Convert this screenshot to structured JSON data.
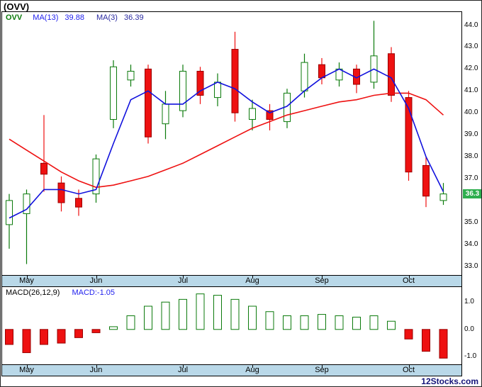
{
  "header": {
    "title": "(OVV)"
  },
  "legend": {
    "symbol": "OVV",
    "ma13_label": "MA(13)",
    "ma13_value": "39.88",
    "ma3_label": "MA(3)",
    "ma3_value": "36.39"
  },
  "macd_legend": {
    "label": "MACD(26,12,9)",
    "value_label": "MACD:-1.05"
  },
  "footer": {
    "brand": "12Stocks.com"
  },
  "colors": {
    "up": "#0b7a0b",
    "down": "#ee1111",
    "down_stroke": "#990000",
    "ma3": "#1111dd",
    "ma13": "#ee1111",
    "band": "#b9d8e8",
    "price_flag_bg": "#2eae4e",
    "price_flag_text": "#ffffff"
  },
  "chart_data": [
    {
      "type": "candlestick",
      "title": "OVV price with MA(13) and MA(3)",
      "y_axis": {
        "min": 32.6,
        "max": 44.6,
        "ticks": [
          44.0,
          43.0,
          42.0,
          41.0,
          40.0,
          39.0,
          38.0,
          37.0,
          35.0,
          34.0,
          33.0
        ]
      },
      "current_price": "36.3",
      "x_axis": {
        "months": [
          {
            "label": "May",
            "index": 1
          },
          {
            "label": "Jun",
            "index": 5
          },
          {
            "label": "Jul",
            "index": 10
          },
          {
            "label": "Aug",
            "index": 14
          },
          {
            "label": "Sep",
            "index": 18
          },
          {
            "label": "Oct",
            "index": 23
          }
        ]
      },
      "columns": [
        "open",
        "high",
        "low",
        "close"
      ],
      "candles": [
        [
          34.9,
          36.3,
          33.8,
          36.0
        ],
        [
          35.4,
          36.5,
          33.1,
          36.3
        ],
        [
          37.7,
          39.9,
          36.4,
          37.2
        ],
        [
          36.8,
          37.1,
          35.5,
          35.9
        ],
        [
          36.1,
          36.5,
          35.3,
          35.7
        ],
        [
          36.3,
          38.1,
          35.9,
          37.9
        ],
        [
          39.7,
          42.4,
          39.3,
          42.1
        ],
        [
          41.5,
          42.2,
          41.2,
          41.9
        ],
        [
          42.0,
          42.2,
          38.6,
          38.9
        ],
        [
          39.5,
          41.0,
          38.8,
          40.4
        ],
        [
          40.1,
          42.2,
          39.8,
          41.9
        ],
        [
          41.9,
          42.1,
          40.4,
          40.8
        ],
        [
          40.7,
          41.8,
          40.3,
          41.4
        ],
        [
          42.9,
          43.7,
          39.6,
          40.0
        ],
        [
          39.7,
          40.6,
          39.2,
          40.2
        ],
        [
          40.1,
          40.4,
          39.2,
          39.7
        ],
        [
          39.6,
          41.1,
          39.3,
          40.9
        ],
        [
          41.0,
          42.7,
          40.7,
          42.3
        ],
        [
          42.2,
          42.5,
          41.3,
          41.6
        ],
        [
          41.5,
          42.3,
          41.2,
          42.0
        ],
        [
          42.0,
          42.2,
          40.9,
          41.3
        ],
        [
          41.4,
          44.2,
          41.1,
          42.6
        ],
        [
          42.7,
          43.0,
          40.5,
          40.8
        ],
        [
          40.7,
          41.0,
          36.9,
          37.3
        ],
        [
          37.6,
          38.0,
          35.7,
          36.2
        ],
        [
          36.0,
          36.8,
          35.8,
          36.3
        ]
      ],
      "series": [
        {
          "name": "MA(3)",
          "color_key": "ma3",
          "values": [
            35.2,
            35.6,
            36.5,
            36.5,
            36.3,
            36.5,
            38.6,
            40.6,
            41.0,
            40.4,
            40.4,
            41.0,
            41.4,
            41.1,
            40.5,
            40.0,
            40.3,
            41.0,
            41.6,
            42.0,
            41.6,
            42.0,
            41.6,
            40.2,
            38.0,
            36.4
          ]
        },
        {
          "name": "MA(13)",
          "color_key": "ma13",
          "values": [
            38.8,
            38.3,
            37.8,
            37.3,
            36.9,
            36.6,
            36.7,
            36.9,
            37.1,
            37.4,
            37.7,
            38.1,
            38.5,
            38.9,
            39.3,
            39.6,
            39.9,
            40.1,
            40.3,
            40.5,
            40.6,
            40.8,
            40.9,
            40.9,
            40.6,
            39.9
          ]
        }
      ]
    },
    {
      "type": "bar",
      "title": "MACD(26,12,9)",
      "y_axis": {
        "min": -1.25,
        "max": 1.55,
        "ticks": [
          1.0,
          0.0,
          -1.0
        ]
      },
      "values": [
        -0.55,
        -0.85,
        -0.55,
        -0.5,
        -0.3,
        -0.12,
        0.1,
        0.5,
        0.85,
        1.0,
        1.1,
        1.3,
        1.25,
        1.1,
        0.85,
        0.65,
        0.5,
        0.5,
        0.55,
        0.5,
        0.45,
        0.5,
        0.3,
        -0.35,
        -0.8,
        -1.05
      ]
    }
  ]
}
